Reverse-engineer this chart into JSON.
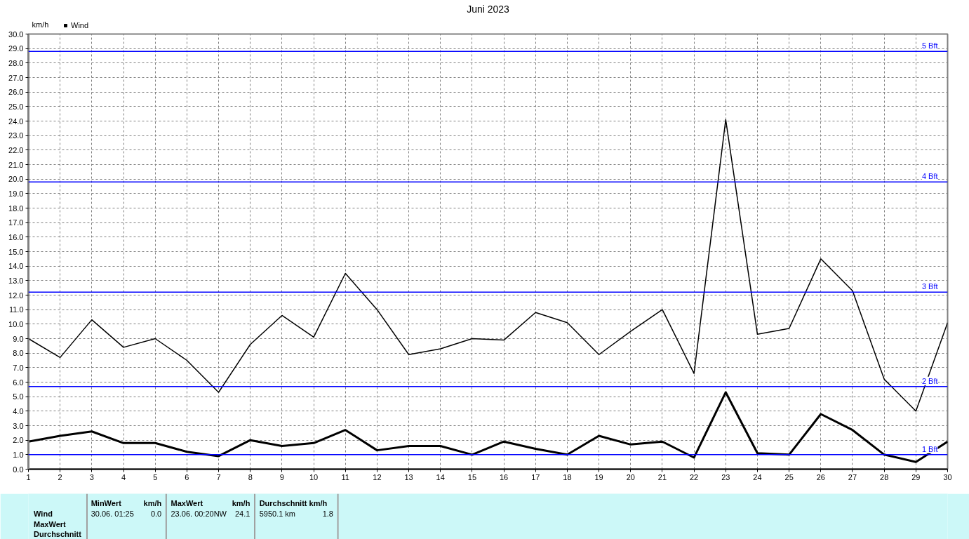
{
  "chart_data": {
    "type": "line",
    "title": "Juni 2023",
    "ylabel": "km/h",
    "x": [
      1,
      2,
      3,
      4,
      5,
      6,
      7,
      8,
      9,
      10,
      11,
      12,
      13,
      14,
      15,
      16,
      17,
      18,
      19,
      20,
      21,
      22,
      23,
      24,
      25,
      26,
      27,
      28,
      29,
      30
    ],
    "xlim": [
      1,
      30
    ],
    "xticks": [
      1,
      2,
      3,
      4,
      5,
      6,
      7,
      8,
      9,
      10,
      11,
      12,
      13,
      14,
      15,
      16,
      17,
      18,
      19,
      20,
      21,
      22,
      23,
      24,
      25,
      26,
      27,
      28,
      29,
      30
    ],
    "ylim": [
      0,
      30
    ],
    "yticks": [
      {
        "value": 0,
        "label": "0.0"
      },
      {
        "value": 1,
        "label": "1.0"
      },
      {
        "value": 2,
        "label": "2.0"
      },
      {
        "value": 3,
        "label": "3.0"
      },
      {
        "value": 4,
        "label": "4.0"
      },
      {
        "value": 5,
        "label": "5.0"
      },
      {
        "value": 6,
        "label": "6.0"
      },
      {
        "value": 7,
        "label": "7.0"
      },
      {
        "value": 8,
        "label": "8.0"
      },
      {
        "value": 9,
        "label": "9.0"
      },
      {
        "value": 10,
        "label": "10.0"
      },
      {
        "value": 11,
        "label": "11.0"
      },
      {
        "value": 12,
        "label": "12.0"
      },
      {
        "value": 13,
        "label": "13.0"
      },
      {
        "value": 14,
        "label": "14.0"
      },
      {
        "value": 15,
        "label": "15.0"
      },
      {
        "value": 16,
        "label": "16.0"
      },
      {
        "value": 17,
        "label": "17.0"
      },
      {
        "value": 18,
        "label": "18.0"
      },
      {
        "value": 19,
        "label": "19.0"
      },
      {
        "value": 20,
        "label": "20.0"
      },
      {
        "value": 21,
        "label": "21.0"
      },
      {
        "value": 22,
        "label": "22.0"
      },
      {
        "value": 23,
        "label": "23.0"
      },
      {
        "value": 24,
        "label": "24.0"
      },
      {
        "value": 25,
        "label": "25.0"
      },
      {
        "value": 26,
        "label": "26.0"
      },
      {
        "value": 27,
        "label": "27.0"
      },
      {
        "value": 28,
        "label": "28.0"
      },
      {
        "value": 29,
        "label": "29.0"
      },
      {
        "value": 30,
        "label": "30.0"
      }
    ],
    "grid": true,
    "legend": "top left",
    "series": [
      {
        "name": "Wind",
        "color": "#000000",
        "values": [
          1.9,
          2.3,
          2.6,
          1.8,
          1.8,
          1.2,
          0.9,
          2.0,
          1.6,
          1.8,
          2.7,
          1.3,
          1.6,
          1.6,
          1.0,
          1.9,
          1.4,
          1.0,
          2.3,
          1.7,
          1.9,
          0.8,
          5.3,
          1.1,
          1.0,
          3.8,
          2.7,
          1.0,
          0.5,
          1.9
        ]
      },
      {
        "color": "#000000",
        "values": [
          9.0,
          7.7,
          10.3,
          8.4,
          9.0,
          7.5,
          5.3,
          8.6,
          10.6,
          9.1,
          13.5,
          11.0,
          7.9,
          8.3,
          9.0,
          8.9,
          10.8,
          10.1,
          7.9,
          9.5,
          11.0,
          6.6,
          24.1,
          9.3,
          9.7,
          14.5,
          12.3,
          6.2,
          4.0,
          10.1
        ]
      }
    ],
    "ref_lines": [
      {
        "axis": "y",
        "value": 1.0,
        "label": "1 Bft",
        "color": "#0000ff"
      },
      {
        "axis": "y",
        "value": 5.7,
        "label": "2 Bft",
        "color": "#0000ff"
      },
      {
        "axis": "y",
        "value": 12.2,
        "label": "3 Bft",
        "color": "#0000ff"
      },
      {
        "axis": "y",
        "value": 19.8,
        "label": "4 Bft",
        "color": "#0000ff"
      },
      {
        "axis": "y",
        "value": 28.8,
        "label": "5 Bft",
        "color": "#0000ff"
      }
    ],
    "annotations": [
      "MinWert",
      "km/h",
      "MaxWert",
      "km/h",
      "Durchschnitt km/h",
      "Wind",
      "30.06. 01:25",
      "0.0",
      "23.06. 00:20NW",
      "24.1",
      "5950.1 km",
      "1.8",
      "MaxWert",
      "Durchschnitt"
    ]
  }
}
